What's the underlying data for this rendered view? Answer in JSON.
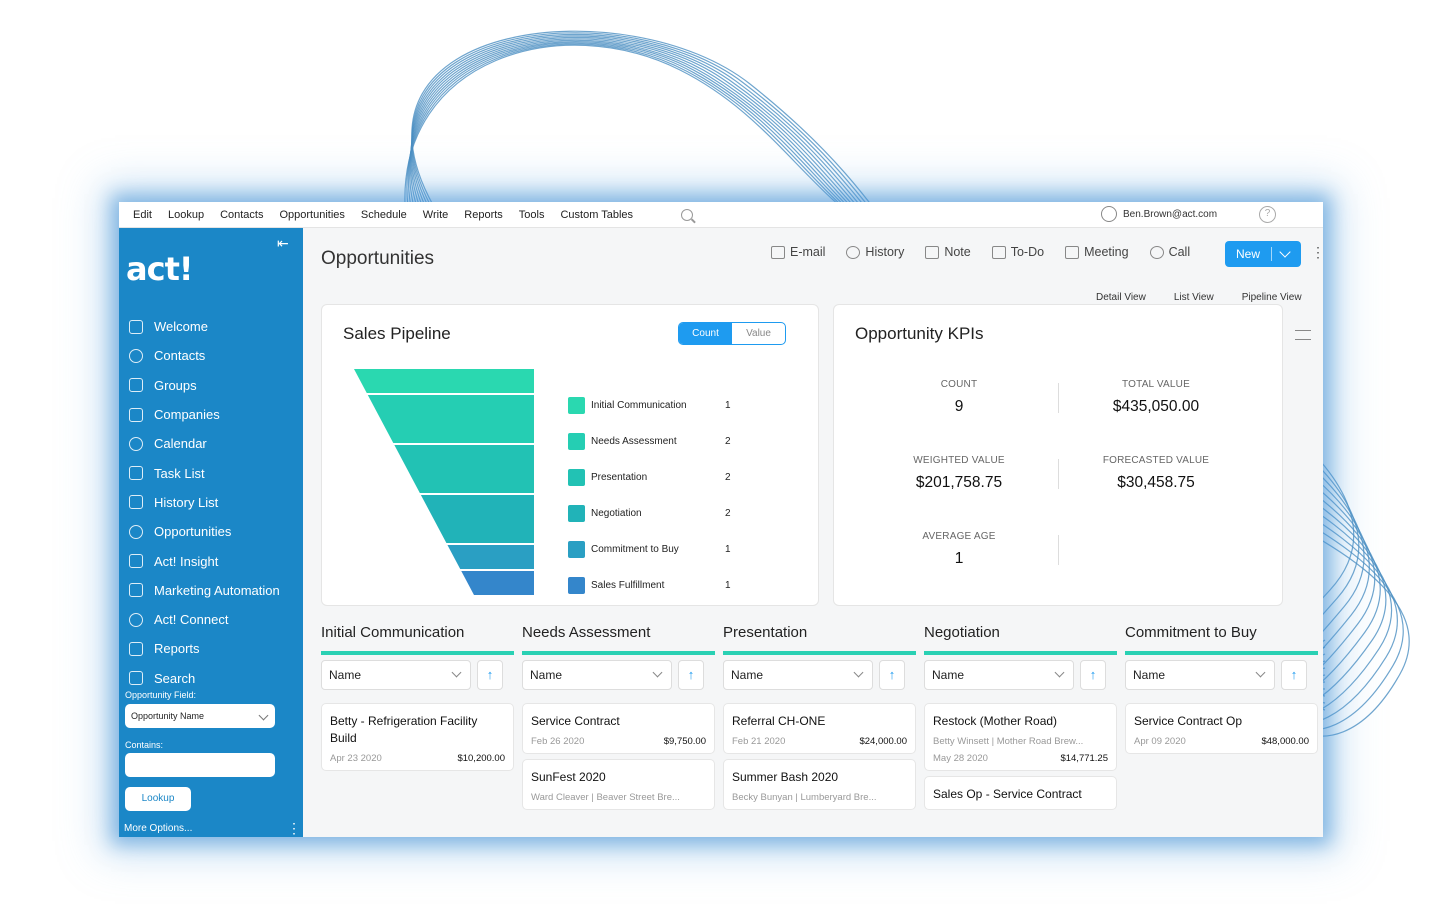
{
  "menu": [
    "Edit",
    "Lookup",
    "Contacts",
    "Opportunities",
    "Schedule",
    "Write",
    "Reports",
    "Tools",
    "Custom Tables"
  ],
  "user": {
    "email": "Ben.Brown@act.com"
  },
  "sidebar": {
    "logo": "act!",
    "items": [
      {
        "label": "Welcome",
        "icon": "grid-icon"
      },
      {
        "label": "Contacts",
        "icon": "contact-icon"
      },
      {
        "label": "Groups",
        "icon": "groups-icon"
      },
      {
        "label": "Companies",
        "icon": "briefcase-icon"
      },
      {
        "label": "Calendar",
        "icon": "calendar-icon"
      },
      {
        "label": "Task List",
        "icon": "checkbox-icon"
      },
      {
        "label": "History List",
        "icon": "history-icon"
      },
      {
        "label": "Opportunities",
        "icon": "opportunities-icon"
      },
      {
        "label": "Act! Insight",
        "icon": "eye-icon"
      },
      {
        "label": "Marketing Automation",
        "icon": "monitor-icon"
      },
      {
        "label": "Act! Connect",
        "icon": "connect-icon"
      },
      {
        "label": "Reports",
        "icon": "chart-line-icon"
      },
      {
        "label": "Search",
        "icon": "search-icon"
      }
    ],
    "field_label": "Opportunity Field:",
    "field_value": "Opportunity Name",
    "contains_label": "Contains:",
    "contains_value": "",
    "lookup_button": "Lookup",
    "more_options": "More Options..."
  },
  "header": {
    "title": "Opportunities",
    "actions": [
      {
        "label": "E-mail",
        "icon": "email-icon"
      },
      {
        "label": "History",
        "icon": "history-icon"
      },
      {
        "label": "Note",
        "icon": "note-icon"
      },
      {
        "label": "To-Do",
        "icon": "todo-icon"
      },
      {
        "label": "Meeting",
        "icon": "calendar-icon"
      },
      {
        "label": "Call",
        "icon": "phone-icon"
      }
    ],
    "new_button": "New",
    "views": [
      "Detail View",
      "List View",
      "Pipeline View"
    ]
  },
  "pipeline": {
    "title": "Sales Pipeline",
    "toggle": [
      "Count",
      "Value"
    ],
    "active_toggle": "Count"
  },
  "chart_data": {
    "type": "funnel",
    "categories": [
      "Initial Communication",
      "Needs Assessment",
      "Presentation",
      "Negotiation",
      "Commitment to Buy",
      "Sales Fulfillment"
    ],
    "values": [
      1,
      2,
      2,
      2,
      1,
      1
    ],
    "colors": [
      "#2ad8b0",
      "#25ceb3",
      "#22c2b4",
      "#21b3b8",
      "#2a9fc3",
      "#3486cb"
    ]
  },
  "kpis": {
    "title": "Opportunity KPIs",
    "items": [
      {
        "label": "COUNT",
        "value": "9"
      },
      {
        "label": "TOTAL VALUE",
        "value": "$435,050.00"
      },
      {
        "label": "WEIGHTED VALUE",
        "value": "$201,758.75"
      },
      {
        "label": "FORECASTED VALUE",
        "value": "$30,458.75"
      },
      {
        "label": "AVERAGE AGE",
        "value": "1"
      }
    ]
  },
  "board": {
    "sort_label": "Name",
    "sort_dir": "↑",
    "columns": [
      {
        "title": "Initial Communication",
        "cards": [
          {
            "name": "Betty - Refrigeration Facility Build",
            "sub": "",
            "date": "Apr 23 2020",
            "value": "$10,200.00"
          }
        ]
      },
      {
        "title": "Needs Assessment",
        "cards": [
          {
            "name": "Service Contract",
            "sub": "",
            "date": "Feb 26 2020",
            "value": "$9,750.00"
          },
          {
            "name": "SunFest 2020",
            "sub": "Ward Cleaver | Beaver Street Bre...",
            "date": "",
            "value": ""
          }
        ]
      },
      {
        "title": "Presentation",
        "cards": [
          {
            "name": "Referral CH-ONE",
            "sub": "",
            "date": "Feb 21 2020",
            "value": "$24,000.00"
          },
          {
            "name": "Summer Bash 2020",
            "sub": "Becky Bunyan | Lumberyard Bre...",
            "date": "",
            "value": ""
          }
        ]
      },
      {
        "title": "Negotiation",
        "cards": [
          {
            "name": "Restock (Mother Road)",
            "sub": "Betty Winsett | Mother Road Brew...",
            "date": "May 28 2020",
            "value": "$14,771.25"
          },
          {
            "name": "Sales Op - Service Contract",
            "sub": "",
            "date": "",
            "value": ""
          }
        ]
      },
      {
        "title": "Commitment to Buy",
        "cards": [
          {
            "name": "Service Contract Op",
            "sub": "",
            "date": "Apr 09 2020",
            "value": "$48,000.00"
          }
        ]
      }
    ]
  }
}
